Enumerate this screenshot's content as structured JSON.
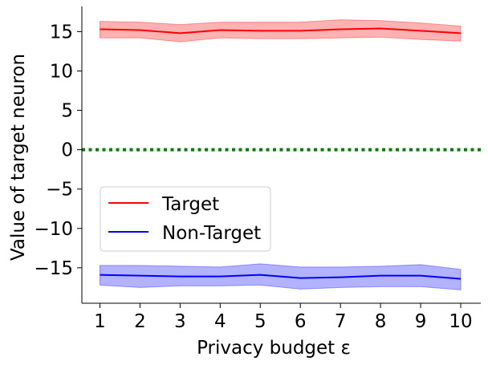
{
  "chart_data": {
    "type": "line",
    "xlabel": "Privacy budget ε",
    "ylabel": "Value of target neuron",
    "x": [
      1,
      2,
      3,
      4,
      5,
      6,
      7,
      8,
      9,
      10
    ],
    "xticks": [
      "1",
      "2",
      "3",
      "4",
      "5",
      "6",
      "7",
      "8",
      "9",
      "10"
    ],
    "yticks": [
      15,
      10,
      5,
      0,
      -5,
      -10,
      -15
    ],
    "ytick_labels": [
      "15",
      "10",
      "5",
      "0",
      "−5",
      "−10",
      "−15"
    ],
    "xlim": [
      0.55,
      10.5
    ],
    "ylim": [
      -19.5,
      18.2
    ],
    "grid": false,
    "legend_position": "center-left",
    "series": [
      {
        "name": "Target",
        "color": "#ff0000",
        "band_color": "#ff6666",
        "values": [
          15.3,
          15.2,
          14.8,
          15.2,
          15.1,
          15.1,
          15.3,
          15.4,
          15.1,
          14.8
        ],
        "upper": [
          16.3,
          16.2,
          15.9,
          16.2,
          16.2,
          16.2,
          16.5,
          16.4,
          16.1,
          15.7
        ],
        "lower": [
          14.2,
          14.2,
          13.7,
          14.2,
          14.1,
          14.1,
          14.2,
          14.3,
          14.0,
          13.8
        ]
      },
      {
        "name": "Non-Target",
        "color": "#0000ff",
        "band_color": "#6666ff",
        "values": [
          -15.9,
          -16.0,
          -16.1,
          -16.1,
          -15.9,
          -16.3,
          -16.2,
          -16.0,
          -16.0,
          -16.4
        ],
        "upper": [
          -14.7,
          -14.7,
          -14.8,
          -14.9,
          -14.5,
          -14.9,
          -14.9,
          -14.8,
          -14.6,
          -15.2
        ],
        "lower": [
          -17.2,
          -17.5,
          -17.3,
          -17.3,
          -17.2,
          -17.7,
          -17.5,
          -17.4,
          -17.4,
          -17.8
        ]
      }
    ],
    "reference_line": {
      "y": 0,
      "color": "#008000",
      "style": "dotted"
    }
  }
}
